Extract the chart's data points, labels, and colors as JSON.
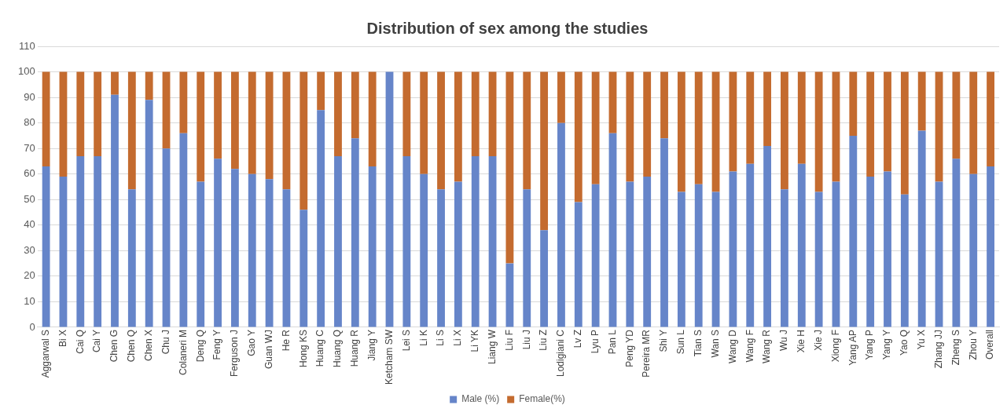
{
  "chart_data": {
    "type": "bar",
    "title": "Distribution of sex among the studies",
    "stacked": true,
    "grid": "y",
    "legend": "bottom",
    "categories": [
      "Aggarwal S",
      "Bi X",
      "Cai Q",
      "Cai Y",
      "Chen G",
      "Chen Q",
      "Chen X",
      "Chu J",
      "Colaneri M",
      "Deng Q",
      "Feng Y",
      "Ferguson J",
      "Gao Y",
      "Guan WJ",
      "He R",
      "Hong KS",
      "Huang C",
      "Huang Q",
      "Huang R",
      "Jiang Y",
      "Ketcham SW",
      "Lei S",
      "Li K",
      "Li S",
      "Li X",
      "Li YK",
      "Liang W",
      "Liu F",
      "Liu J",
      "Liu Z",
      "Lodigiani C",
      "Lv Z",
      "Lyu P",
      "Pan L",
      "Peng YD",
      "Pereira MR",
      "Shi Y",
      "Sun L",
      "Tian S",
      "Wan S",
      "Wang D",
      "Wang F",
      "Wang R",
      "Wu J",
      "Xie H",
      "Xie J",
      "Xiong F",
      "Yang AP",
      "Yang P",
      "Yang Y",
      "Yao Q",
      "Yu X",
      "Zhang JJ",
      "Zheng S",
      "Zhou Y",
      "Overall"
    ],
    "series": [
      {
        "name": "Male (%)",
        "color": "#6685c9",
        "values": [
          63,
          59,
          67,
          67,
          91,
          54,
          89,
          70,
          76,
          57,
          66,
          62,
          60,
          58,
          54,
          46,
          85,
          67,
          74,
          63,
          100,
          67,
          60,
          54,
          57,
          67,
          67,
          25,
          54,
          38,
          80,
          49,
          56,
          76,
          57,
          59,
          74,
          53,
          56,
          53,
          61,
          64,
          71,
          54,
          64,
          53,
          57,
          75,
          59,
          61,
          52,
          77,
          57,
          66,
          60,
          63
        ]
      },
      {
        "name": "Female(%)",
        "color": "#c46b2f",
        "values": [
          37,
          41,
          33,
          33,
          9,
          46,
          11,
          30,
          24,
          43,
          34,
          38,
          40,
          42,
          46,
          54,
          15,
          33,
          26,
          37,
          0,
          33,
          40,
          46,
          43,
          33,
          33,
          75,
          46,
          62,
          20,
          51,
          44,
          24,
          43,
          41,
          26,
          47,
          44,
          47,
          39,
          36,
          29,
          46,
          36,
          47,
          43,
          25,
          41,
          39,
          48,
          23,
          43,
          34,
          40,
          37
        ]
      }
    ],
    "ylim": [
      0,
      110
    ],
    "yticks": [
      0,
      10,
      20,
      30,
      40,
      50,
      60,
      70,
      80,
      90,
      100,
      110
    ]
  }
}
